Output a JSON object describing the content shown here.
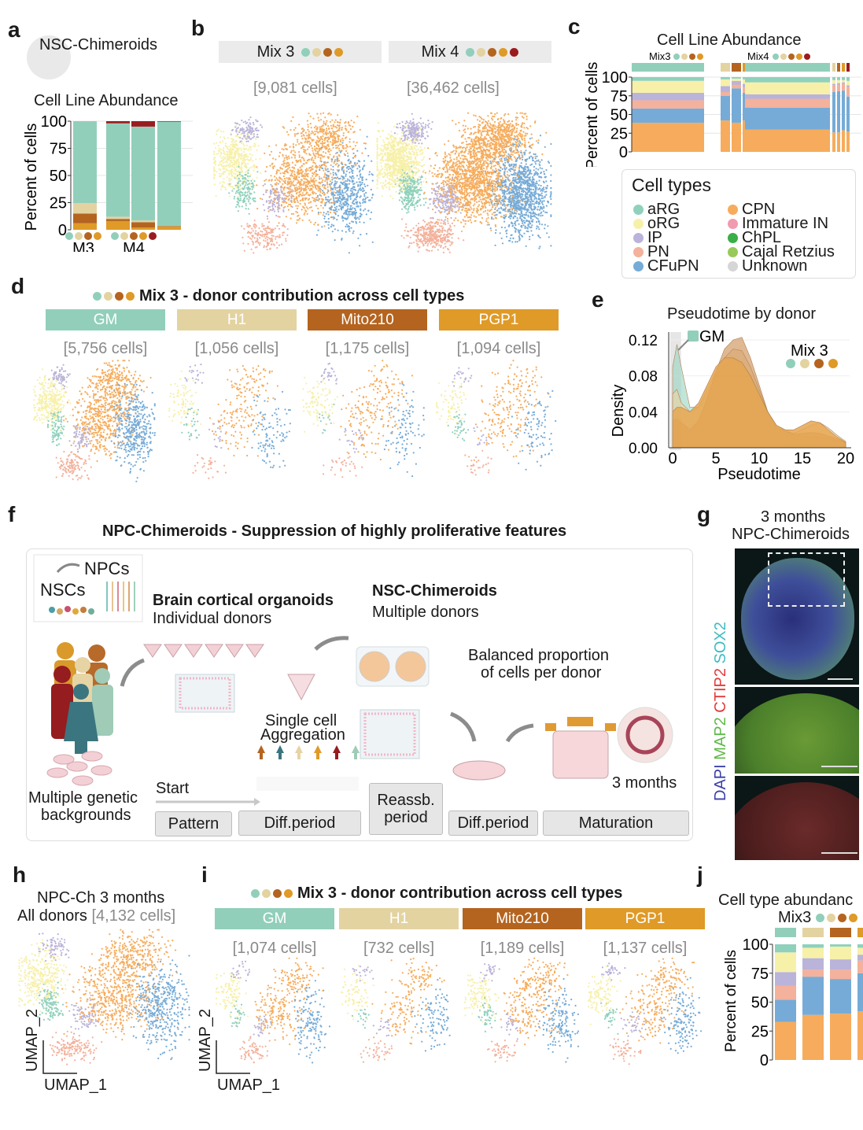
{
  "panel_labels": [
    "a",
    "b",
    "c",
    "d",
    "e",
    "f",
    "g",
    "h",
    "i",
    "j"
  ],
  "colors": {
    "cell_types": {
      "aRG": "#8fd1bd",
      "oRG": "#f7f0a9",
      "IP": "#bab3da",
      "PN": "#f4b19b",
      "CFuPN": "#76abd7",
      "CPN": "#f6ac5c",
      "Immature IN": "#f09bb0",
      "ChPL": "#3aae48",
      "Cajal Retzius": "#98c95a",
      "Unknown": "#d6d6d6"
    },
    "donors": {
      "GM": "#92cfbb",
      "H1": "#e3d3a1",
      "Mito210": "#b4641f",
      "PGP1": "#df9a27",
      "donor5": "#9b1b1e"
    }
  },
  "panel_a": {
    "icon_title": "NSC-Chimeroids",
    "chart": {
      "type": "bar",
      "stacked": true,
      "title": "Cell Line Abundance",
      "ylabel": "Percent of cells",
      "yticks": [
        0,
        25,
        50,
        75,
        100
      ],
      "ylim": [
        0,
        100
      ],
      "stack_order": [
        "PGP1",
        "Mito210",
        "H1",
        "GM",
        "donor5"
      ],
      "groups": [
        {
          "label": "M3",
          "donors": [
            "GM",
            "H1",
            "Mito210",
            "PGP1"
          ],
          "bars": [
            {
              "PGP1": 6,
              "Mito210": 9,
              "H1": 9.5,
              "GM": 75.5,
              "donor5": 0
            }
          ]
        },
        {
          "label": "M4",
          "donors": [
            "GM",
            "H1",
            "Mito210",
            "PGP1",
            "donor5"
          ],
          "bars": [
            {
              "PGP1": 8,
              "Mito210": 2,
              "H1": 2,
              "GM": 86,
              "donor5": 2
            },
            {
              "PGP1": 2,
              "Mito210": 5,
              "H1": 1.5,
              "GM": 86.5,
              "donor5": 5
            },
            {
              "PGP1": 3,
              "Mito210": 0.5,
              "H1": 0,
              "GM": 96,
              "donor5": 0.5
            }
          ]
        }
      ]
    }
  },
  "panel_b": {
    "umaps": [
      {
        "title": "Mix 3",
        "donors": [
          "GM",
          "H1",
          "Mito210",
          "PGP1"
        ],
        "cells": "[9,081 cells]"
      },
      {
        "title": "Mix 4",
        "donors": [
          "GM",
          "H1",
          "Mito210",
          "PGP1",
          "donor5"
        ],
        "cells": "[36,462 cells]"
      }
    ]
  },
  "panel_c": {
    "chart": {
      "type": "bar",
      "stacked": true,
      "title": "Cell Line Abundance",
      "ylabel": "Percent of cells",
      "yticks": [
        0,
        25,
        50,
        75,
        100
      ],
      "ylim": [
        0,
        100
      ],
      "stack_order": [
        "CPN",
        "CFuPN",
        "PN",
        "IP",
        "oRG",
        "aRG"
      ],
      "groups": [
        {
          "label": "Mix3",
          "donors": [
            "GM",
            "H1",
            "Mito210",
            "PGP1"
          ],
          "bars": [
            {
              "donor": "GM",
              "CPN": 39,
              "CFuPN": 19,
              "PN": 11,
              "IP": 10,
              "oRG": 16,
              "aRG": 5
            },
            {
              "donor": "H1",
              "CPN": 42,
              "CFuPN": 33,
              "PN": 5,
              "IP": 8,
              "oRG": 9,
              "aRG": 3
            },
            {
              "donor": "Mito210",
              "CPN": 39,
              "CFuPN": 46,
              "PN": 5,
              "IP": 5,
              "oRG": 3,
              "aRG": 2
            },
            {
              "donor": "PGP1",
              "CPN": 42,
              "CFuPN": 37,
              "PN": 7,
              "IP": 5,
              "oRG": 6,
              "aRG": 3
            }
          ]
        },
        {
          "label": "Mix4",
          "donors": [
            "GM",
            "H1",
            "Mito210",
            "PGP1",
            "donor5"
          ],
          "bars": [
            {
              "donor": "GM",
              "CPN": 30,
              "CFuPN": 29,
              "PN": 12,
              "IP": 6,
              "oRG": 16,
              "aRG": 7
            },
            {
              "donor": "H1",
              "CPN": 26,
              "CFuPN": 54,
              "PN": 9,
              "IP": 2,
              "oRG": 5,
              "aRG": 4
            },
            {
              "donor": "Mito210",
              "CPN": 26,
              "CFuPN": 55,
              "PN": 9,
              "IP": 2,
              "oRG": 4,
              "aRG": 4
            },
            {
              "donor": "PGP1",
              "CPN": 29,
              "CFuPN": 53,
              "PN": 9,
              "IP": 2,
              "oRG": 3,
              "aRG": 4
            },
            {
              "donor": "donor5",
              "CPN": 27,
              "CFuPN": 47,
              "PN": 13,
              "IP": 2,
              "oRG": 6,
              "aRG": 5
            }
          ]
        }
      ]
    },
    "legend": {
      "title": "Cell types",
      "items": [
        "aRG",
        "oRG",
        "IP",
        "PN",
        "CFuPN",
        "CPN",
        "Immature IN",
        "ChPL",
        "Cajal Retzius",
        "Unknown"
      ]
    }
  },
  "panel_d": {
    "title": "Mix 3 - donor contribution across cell types",
    "title_donors": [
      "GM",
      "H1",
      "Mito210",
      "PGP1"
    ],
    "donors": [
      {
        "name": "GM",
        "cells": "[5,756 cells]"
      },
      {
        "name": "H1",
        "cells": "[1,056 cells]"
      },
      {
        "name": "Mito210",
        "cells": "[1,175 cells]"
      },
      {
        "name": "PGP1",
        "cells": "[1,094 cells]"
      }
    ]
  },
  "panel_e": {
    "chart": {
      "type": "area",
      "title": "Pseudotime by donor",
      "xlabel": "Pseudotime",
      "ylabel": "Density",
      "xticks": [
        0,
        5,
        10,
        15,
        20
      ],
      "yticks": [
        "0.00",
        "0.04",
        "0.08",
        "0.12"
      ],
      "xlim": [
        0,
        20
      ],
      "ylim": [
        0,
        0.125
      ],
      "annotation": "GM",
      "legend_title": "Mix 3",
      "legend_donors": [
        "GM",
        "H1",
        "Mito210",
        "PGP1"
      ],
      "x": [
        0,
        0.5,
        1,
        2,
        3,
        4,
        5,
        6,
        7,
        8,
        9,
        10,
        11,
        12,
        13,
        14,
        15,
        16,
        17,
        18,
        19,
        20
      ],
      "series": [
        {
          "name": "GM",
          "values": [
            0.09,
            0.115,
            0.09,
            0.045,
            0.045,
            0.06,
            0.08,
            0.092,
            0.098,
            0.095,
            0.08,
            0.06,
            0.04,
            0.025,
            0.02,
            0.015,
            0.012,
            0.012,
            0.012,
            0.01,
            0.008,
            0.005
          ]
        },
        {
          "name": "H1",
          "values": [
            0.06,
            0.065,
            0.05,
            0.04,
            0.045,
            0.065,
            0.085,
            0.1,
            0.11,
            0.108,
            0.09,
            0.065,
            0.04,
            0.025,
            0.018,
            0.016,
            0.02,
            0.025,
            0.028,
            0.022,
            0.014,
            0.007
          ]
        },
        {
          "name": "Mito210",
          "values": [
            0.03,
            0.032,
            0.028,
            0.02,
            0.03,
            0.055,
            0.085,
            0.11,
            0.12,
            0.123,
            0.1,
            0.07,
            0.04,
            0.022,
            0.018,
            0.015,
            0.016,
            0.017,
            0.016,
            0.013,
            0.01,
            0.006
          ]
        },
        {
          "name": "PGP1",
          "values": [
            0.04,
            0.045,
            0.045,
            0.04,
            0.05,
            0.07,
            0.09,
            0.1,
            0.1,
            0.095,
            0.08,
            0.06,
            0.04,
            0.025,
            0.02,
            0.02,
            0.025,
            0.03,
            0.028,
            0.02,
            0.012,
            0.006
          ]
        }
      ]
    }
  },
  "panel_f": {
    "title": "NPC-Chimeroids - Suppression of highly proliferative features",
    "npcs": "NPCs",
    "nscs": "NSCs",
    "organoids_title": "Brain cortical organoids",
    "organoids_sub": "Individual donors",
    "chimeroids_title": "NSC-Chimeroids",
    "chimeroids_sub": "Multiple donors",
    "balanced_1": "Balanced proportion",
    "balanced_2": "of cells per donor",
    "single_cell_1": "Single cell",
    "single_cell_2": "Aggregation",
    "start": "Start",
    "three_months": "3 months",
    "genetic_1": "Multiple genetic",
    "genetic_2": "backgrounds",
    "stages": {
      "pattern": "Pattern",
      "diff1": "Diff.period",
      "reassb_1": "Reassb.",
      "reassb_2": "period",
      "diff2": "Diff.period",
      "maturation": "Maturation"
    }
  },
  "panel_g": {
    "title_1": "3 months",
    "title_2": "NPC-Chimeroids",
    "stains": [
      {
        "name": "DAPI",
        "color": "#3b3fa8"
      },
      {
        "name": "MAP2",
        "color": "#5fb848"
      },
      {
        "name": "CTIP2",
        "color": "#e23a3a"
      },
      {
        "name": "SOX2",
        "color": "#3fbcc4"
      }
    ]
  },
  "panel_h": {
    "title_1": "NPC-Ch 3 months",
    "title_2": "All donors",
    "cells": "[4,132 cells]",
    "xlabel": "UMAP_1",
    "ylabel": "UMAP_2"
  },
  "panel_i": {
    "title": "Mix 3 - donor contribution across cell types",
    "title_donors": [
      "GM",
      "H1",
      "Mito210",
      "PGP1"
    ],
    "donors": [
      {
        "name": "GM",
        "cells": "[1,074 cells]"
      },
      {
        "name": "H1",
        "cells": "[732 cells]"
      },
      {
        "name": "Mito210",
        "cells": "[1,189 cells]"
      },
      {
        "name": "PGP1",
        "cells": "[1,137 cells]"
      }
    ],
    "xlabel": "UMAP_1",
    "ylabel": "UMAP_2"
  },
  "panel_j": {
    "chart": {
      "type": "bar",
      "stacked": true,
      "title": "Cell type abundanc",
      "subtitle": "Mix3",
      "ylabel": "Percent of cells",
      "yticks": [
        0,
        25,
        50,
        75,
        100
      ],
      "ylim": [
        0,
        100
      ],
      "stack_order": [
        "CPN",
        "CFuPN",
        "PN",
        "IP",
        "oRG",
        "aRG"
      ],
      "donors": [
        "GM",
        "H1",
        "Mito210",
        "PGP1"
      ],
      "bars": [
        {
          "donor": "GM",
          "CPN": 33,
          "CFuPN": 19,
          "PN": 12,
          "IP": 12,
          "oRG": 17,
          "aRG": 7
        },
        {
          "donor": "H1",
          "CPN": 39,
          "CFuPN": 33,
          "PN": 6,
          "IP": 10,
          "oRG": 9,
          "aRG": 3
        },
        {
          "donor": "Mito210",
          "CPN": 40,
          "CFuPN": 30,
          "PN": 8,
          "IP": 9,
          "oRG": 11,
          "aRG": 2
        },
        {
          "donor": "PGP1",
          "CPN": 42,
          "CFuPN": 33,
          "PN": 11,
          "IP": 5,
          "oRG": 6,
          "aRG": 3
        }
      ]
    }
  }
}
